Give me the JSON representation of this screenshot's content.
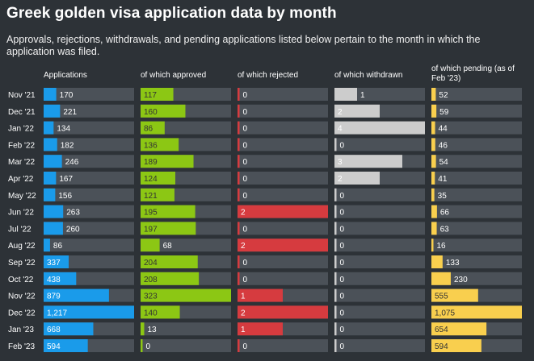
{
  "title": "Greek golden visa application data by month",
  "subtitle": "Approvals, rejections, withdrawals, and pending applications listed below pertain to the month in which the application was filed.",
  "colors": {
    "background": "#2d3237",
    "track": "#4b5158",
    "applications": "#1a9bea",
    "approved": "#8cc714",
    "rejected": "#d63b3f",
    "withdrawn": "#cccccc",
    "pending": "#f9cf4e"
  },
  "chart_data": {
    "type": "table",
    "months": [
      "Nov '21",
      "Dec '21",
      "Jan '22",
      "Feb '22",
      "Mar '22",
      "Apr '22",
      "May '22",
      "Jun '22",
      "Jul '22",
      "Aug '22",
      "Sep '22",
      "Oct '22",
      "Nov '22",
      "Dec '22",
      "Jan '23",
      "Feb '23"
    ],
    "columns": [
      {
        "key": "applications",
        "header": "Applications",
        "values": [
          170,
          221,
          134,
          182,
          246,
          167,
          156,
          263,
          260,
          86,
          337,
          438,
          879,
          1217,
          668,
          594
        ],
        "labels": [
          "170",
          "221",
          "134",
          "182",
          "246",
          "167",
          "156",
          "263",
          "260",
          "86",
          "337",
          "438",
          "879",
          "1,217",
          "668",
          "594"
        ]
      },
      {
        "key": "approved",
        "header": "of which approved",
        "values": [
          117,
          160,
          86,
          136,
          189,
          124,
          121,
          195,
          197,
          68,
          204,
          208,
          323,
          140,
          13,
          0
        ],
        "labels": [
          "117",
          "160",
          "86",
          "136",
          "189",
          "124",
          "121",
          "195",
          "197",
          "68",
          "204",
          "208",
          "323",
          "140",
          "13",
          "0"
        ]
      },
      {
        "key": "rejected",
        "header": "of which rejected",
        "values": [
          0,
          0,
          0,
          0,
          0,
          0,
          0,
          2,
          0,
          2,
          0,
          0,
          1,
          2,
          1,
          0
        ],
        "labels": [
          "0",
          "0",
          "0",
          "0",
          "0",
          "0",
          "0",
          "2",
          "0",
          "2",
          "0",
          "0",
          "1",
          "2",
          "1",
          "0"
        ]
      },
      {
        "key": "withdrawn",
        "header": "of which withdrawn",
        "values": [
          1,
          2,
          4,
          0,
          3,
          2,
          0,
          0,
          0,
          0,
          0,
          0,
          0,
          0,
          0,
          0
        ],
        "labels": [
          "1",
          "2",
          "4",
          "0",
          "3",
          "2",
          "0",
          "0",
          "0",
          "0",
          "0",
          "0",
          "0",
          "0",
          "0",
          "0"
        ]
      },
      {
        "key": "pending",
        "header": "of which pending (as of Feb '23)",
        "values": [
          52,
          59,
          44,
          46,
          54,
          41,
          35,
          66,
          63,
          16,
          133,
          230,
          555,
          1075,
          654,
          594
        ],
        "labels": [
          "52",
          "59",
          "44",
          "46",
          "54",
          "41",
          "35",
          "66",
          "63",
          "16",
          "133",
          "230",
          "555",
          "1,075",
          "654",
          "594"
        ]
      }
    ]
  }
}
